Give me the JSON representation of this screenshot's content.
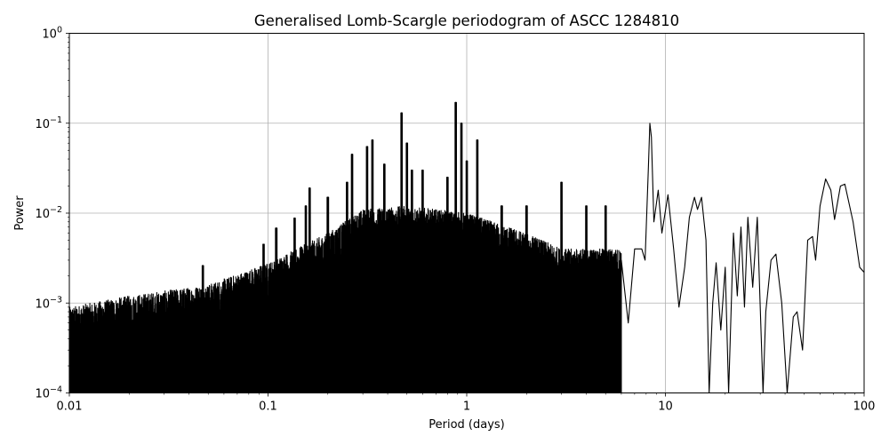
{
  "chart_data": {
    "type": "line",
    "title": "Generalised Lomb-Scargle periodogram of ASCC 1284810",
    "xlabel": "Period (days)",
    "ylabel": "Power",
    "x_scale": "log",
    "y_scale": "log",
    "xlim": [
      0.01,
      100
    ],
    "ylim": [
      0.0001,
      1
    ],
    "x_ticks": [
      {
        "value": 0.01,
        "label": "0.01"
      },
      {
        "value": 0.1,
        "label": "0.1"
      },
      {
        "value": 1,
        "label": "1"
      },
      {
        "value": 10,
        "label": "10"
      },
      {
        "value": 100,
        "label": "100"
      }
    ],
    "y_ticks": [
      {
        "value": 0.0001,
        "base": "10",
        "exp": "−4"
      },
      {
        "value": 0.001,
        "base": "10",
        "exp": "−3"
      },
      {
        "value": 0.01,
        "base": "10",
        "exp": "−2"
      },
      {
        "value": 0.1,
        "base": "10",
        "exp": "−1"
      },
      {
        "value": 1,
        "base": "10",
        "exp": "0"
      }
    ],
    "grid": true,
    "line_color": "#000000",
    "noise_envelope": [
      [
        0.01,
        0.0009
      ],
      [
        0.02,
        0.0012
      ],
      [
        0.05,
        0.0016
      ],
      [
        0.1,
        0.0028
      ],
      [
        0.2,
        0.006
      ],
      [
        0.3,
        0.011
      ],
      [
        0.5,
        0.012
      ],
      [
        1,
        0.01
      ],
      [
        2,
        0.006
      ],
      [
        3,
        0.004
      ],
      [
        5,
        0.004
      ],
      [
        7,
        0.004
      ]
    ],
    "peaks": [
      {
        "period": 0.047,
        "power": 0.0026
      },
      {
        "period": 0.095,
        "power": 0.0045
      },
      {
        "period": 0.11,
        "power": 0.0068
      },
      {
        "period": 0.136,
        "power": 0.0088
      },
      {
        "period": 0.155,
        "power": 0.012
      },
      {
        "period": 0.162,
        "power": 0.019
      },
      {
        "period": 0.2,
        "power": 0.015
      },
      {
        "period": 0.25,
        "power": 0.022
      },
      {
        "period": 0.265,
        "power": 0.045
      },
      {
        "period": 0.315,
        "power": 0.055
      },
      {
        "period": 0.335,
        "power": 0.065
      },
      {
        "period": 0.385,
        "power": 0.035
      },
      {
        "period": 0.47,
        "power": 0.13
      },
      {
        "period": 0.5,
        "power": 0.06
      },
      {
        "period": 0.53,
        "power": 0.03
      },
      {
        "period": 0.6,
        "power": 0.03
      },
      {
        "period": 0.8,
        "power": 0.025
      },
      {
        "period": 0.88,
        "power": 0.17
      },
      {
        "period": 0.94,
        "power": 0.1
      },
      {
        "period": 1.0,
        "power": 0.038
      },
      {
        "period": 1.13,
        "power": 0.065
      },
      {
        "period": 1.5,
        "power": 0.012
      },
      {
        "period": 2.0,
        "power": 0.012
      },
      {
        "period": 3.0,
        "power": 0.022
      },
      {
        "period": 4.0,
        "power": 0.012
      },
      {
        "period": 5.0,
        "power": 0.012
      }
    ],
    "smooth_curve": [
      [
        6.0,
        0.003
      ],
      [
        6.5,
        0.0006
      ],
      [
        7.0,
        0.004
      ],
      [
        7.6,
        0.004
      ],
      [
        7.9,
        0.003
      ],
      [
        8.2,
        0.03
      ],
      [
        8.35,
        0.1
      ],
      [
        8.5,
        0.07
      ],
      [
        8.75,
        0.008
      ],
      [
        9.2,
        0.018
      ],
      [
        9.6,
        0.006
      ],
      [
        10.3,
        0.016
      ],
      [
        11.0,
        0.004
      ],
      [
        11.7,
        0.0009
      ],
      [
        12.5,
        0.0025
      ],
      [
        13.2,
        0.009
      ],
      [
        14.0,
        0.015
      ],
      [
        14.5,
        0.011
      ],
      [
        15.2,
        0.015
      ],
      [
        16.0,
        0.005
      ],
      [
        16.6,
        0.0001
      ],
      [
        17.3,
        0.001
      ],
      [
        18.0,
        0.0028
      ],
      [
        19.0,
        0.0005
      ],
      [
        20.0,
        0.0025
      ],
      [
        20.8,
        0.0001
      ],
      [
        22.0,
        0.006
      ],
      [
        23.0,
        0.0012
      ],
      [
        24.0,
        0.007
      ],
      [
        25.0,
        0.0009
      ],
      [
        26.0,
        0.009
      ],
      [
        27.5,
        0.0015
      ],
      [
        29.0,
        0.009
      ],
      [
        31.0,
        0.0001
      ],
      [
        32.0,
        0.0008
      ],
      [
        34.0,
        0.003
      ],
      [
        36.0,
        0.0035
      ],
      [
        38.5,
        0.001
      ],
      [
        41.0,
        0.0001
      ],
      [
        44.0,
        0.0007
      ],
      [
        46.0,
        0.0008
      ],
      [
        49.0,
        0.0003
      ],
      [
        52.0,
        0.005
      ],
      [
        55.0,
        0.0055
      ],
      [
        57.0,
        0.003
      ],
      [
        60.0,
        0.012
      ],
      [
        64.0,
        0.024
      ],
      [
        68.0,
        0.018
      ],
      [
        71.0,
        0.0085
      ],
      [
        76.0,
        0.02
      ],
      [
        80.0,
        0.021
      ],
      [
        88.0,
        0.008
      ],
      [
        95.0,
        0.0025
      ],
      [
        100.0,
        0.0022
      ]
    ]
  }
}
